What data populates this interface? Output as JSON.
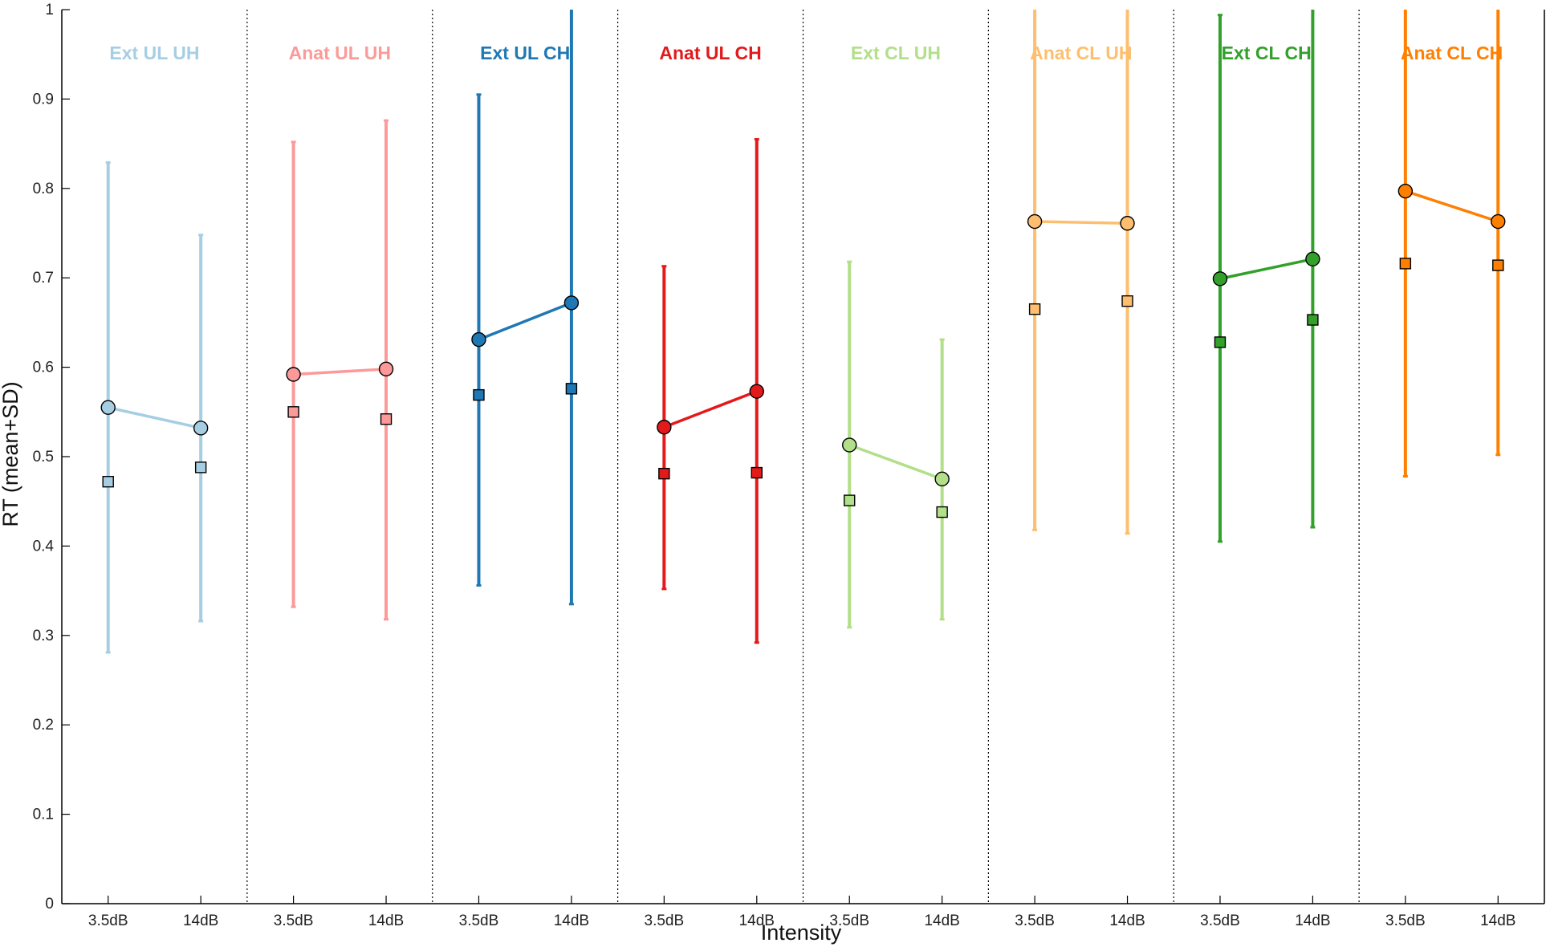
{
  "chart_data": {
    "type": "line",
    "title": "",
    "xlabel": "Intensity",
    "ylabel": "RT (mean+SD)",
    "ylim": [
      0,
      1
    ],
    "yticks": [
      "0",
      "0.1",
      "0.2",
      "0.3",
      "0.4",
      "0.5",
      "0.6",
      "0.7",
      "0.8",
      "0.9",
      "1"
    ],
    "categories": [
      "3.5dB",
      "14dB"
    ],
    "grid": false,
    "panel_separators": "dotted",
    "markers": {
      "circle": "mean",
      "square": "second statistic"
    },
    "panels": [
      {
        "title": "Ext UL UH",
        "color": "#a6cee3",
        "circle": [
          0.555,
          0.532
        ],
        "square": [
          0.472,
          0.488
        ],
        "err_low": [
          0.281,
          0.316
        ],
        "err_high": [
          0.829,
          0.748
        ]
      },
      {
        "title": "Anat UL UH",
        "color": "#fb9a99",
        "circle": [
          0.592,
          0.598
        ],
        "square": [
          0.55,
          0.542
        ],
        "err_low": [
          0.332,
          0.318
        ],
        "err_high": [
          0.852,
          0.876
        ]
      },
      {
        "title": "Ext UL CH",
        "color": "#1f78b4",
        "circle": [
          0.631,
          0.672
        ],
        "square": [
          0.569,
          0.576
        ],
        "err_low": [
          0.356,
          0.335
        ],
        "err_high": [
          0.905,
          1.0
        ]
      },
      {
        "title": "Anat UL CH",
        "color": "#e31a1c",
        "circle": [
          0.533,
          0.573
        ],
        "square": [
          0.481,
          0.482
        ],
        "err_low": [
          0.352,
          0.292
        ],
        "err_high": [
          0.713,
          0.855
        ]
      },
      {
        "title": "Ext CL UH",
        "color": "#b2df8a",
        "circle": [
          0.513,
          0.475
        ],
        "square": [
          0.451,
          0.438
        ],
        "err_low": [
          0.309,
          0.318
        ],
        "err_high": [
          0.718,
          0.631
        ]
      },
      {
        "title": "Anat CL UH",
        "color": "#fdbf6f",
        "circle": [
          0.763,
          0.761
        ],
        "square": [
          0.665,
          0.674
        ],
        "err_low": [
          0.418,
          0.414
        ],
        "err_high": [
          1.0,
          1.0
        ]
      },
      {
        "title": "Ext CL CH",
        "color": "#33a02c",
        "circle": [
          0.699,
          0.721
        ],
        "square": [
          0.628,
          0.653
        ],
        "err_low": [
          0.405,
          0.421
        ],
        "err_high": [
          0.994,
          1.0
        ]
      },
      {
        "title": "Anat CL CH",
        "color": "#ff7f00",
        "circle": [
          0.797,
          0.763
        ],
        "square": [
          0.716,
          0.714
        ],
        "err_low": [
          0.478,
          0.502
        ],
        "err_high": [
          1.0,
          1.0
        ]
      }
    ]
  }
}
